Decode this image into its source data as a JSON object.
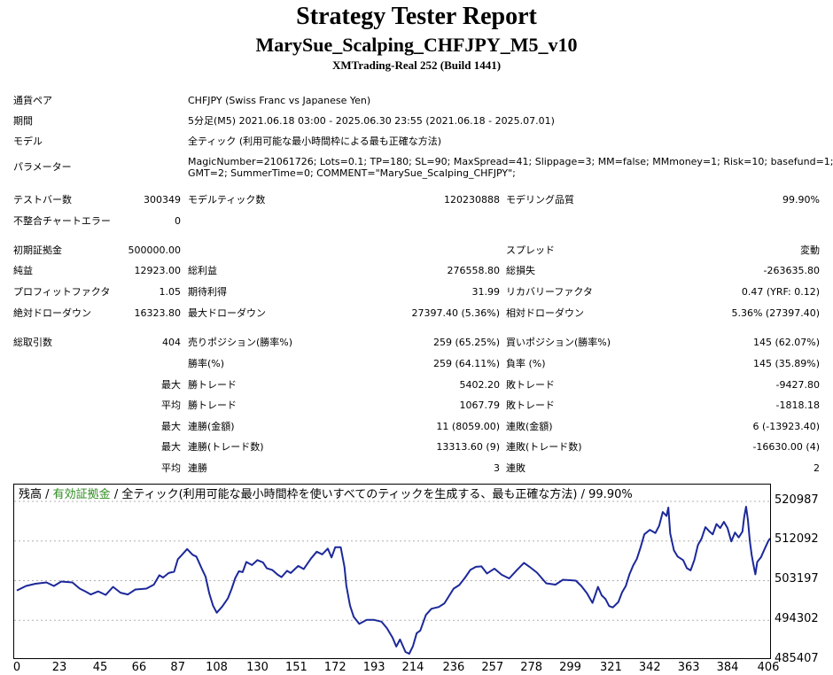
{
  "header": {
    "title": "Strategy Tester Report",
    "subtitle": "MarySue_Scalping_CHFJPY_M5_v10",
    "server": "XMTrading-Real 252 (Build 1441)"
  },
  "info": {
    "pair_label": "通貨ペア",
    "pair_value": "CHFJPY (Swiss Franc vs Japanese Yen)",
    "period_label": "期間",
    "period_value": "5分足(M5) 2021.06.18 03:00 - 2025.06.30 23:55 (2021.06.18 - 2025.07.01)",
    "model_label": "モデル",
    "model_value": "全ティック (利用可能な最小時間枠による最も正確な方法)",
    "params_label": "パラメーター",
    "params_line1": "MagicNumber=21061726; Lots=0.1; TP=180; SL=90; MaxSpread=41; Slippage=3; MM=false; MMmoney=1; Risk=10; basefund=1;",
    "params_line2": "GMT=2; SummerTime=0; COMMENT=\"MarySue_Scalping_CHFJPY\";"
  },
  "stats": {
    "bars_label": "テストバー数",
    "bars_value": "300349",
    "ticks_label": "モデルティック数",
    "ticks_value": "120230888",
    "quality_label": "モデリング品質",
    "quality_value": "99.90%",
    "mismatch_label": "不整合チャートエラー",
    "mismatch_value": "0",
    "deposit_label": "初期証拠金",
    "deposit_value": "500000.00",
    "spread_label": "スプレッド",
    "spread_value": "変動",
    "net_label": "純益",
    "net_value": "12923.00",
    "gross_profit_label": "総利益",
    "gross_profit_value": "276558.80",
    "gross_loss_label": "総損失",
    "gross_loss_value": "-263635.80",
    "pf_label": "プロフィットファクタ",
    "pf_value": "1.05",
    "expected_label": "期待利得",
    "expected_value": "31.99",
    "recovery_label": "リカバリーファクタ",
    "recovery_value": "0.47 (YRF: 0.12)",
    "abs_dd_label": "絶対ドローダウン",
    "abs_dd_value": "16323.80",
    "max_dd_label": "最大ドローダウン",
    "max_dd_value": "27397.40 (5.36%)",
    "rel_dd_label": "相対ドローダウン",
    "rel_dd_value": "5.36% (27397.40)"
  },
  "trades": {
    "total_label": "総取引数",
    "total_value": "404",
    "short_label": "売りポジション(勝率%)",
    "short_value": "259 (65.25%)",
    "long_label": "買いポジション(勝率%)",
    "long_value": "145 (62.07%)",
    "win_label": "勝率(%)",
    "win_value": "259 (64.11%)",
    "loss_label": "負率 (%)",
    "loss_value": "145 (35.89%)",
    "rows": [
      {
        "prefix": "最大",
        "l1": "勝トレード",
        "v1": "5402.20",
        "l2": "敗トレード",
        "v2": "-9427.80"
      },
      {
        "prefix": "平均",
        "l1": "勝トレード",
        "v1": "1067.79",
        "l2": "敗トレード",
        "v2": "-1818.18"
      },
      {
        "prefix": "最大",
        "l1": "連勝(金額)",
        "v1": "11 (8059.00)",
        "l2": "連敗(金額)",
        "v2": "6 (-13923.40)"
      },
      {
        "prefix": "最大",
        "l1": "連勝(トレード数)",
        "v1": "13313.60 (9)",
        "l2": "連敗(トレード数)",
        "v2": "-16630.00 (4)"
      },
      {
        "prefix": "平均",
        "l1": "連勝",
        "v1": "3",
        "l2": "連敗",
        "v2": "2"
      }
    ]
  },
  "legend": {
    "balance": "残高",
    "sep1": " / ",
    "equity": "有効証拠金",
    "sep2": " / ",
    "description": "全ティック(利用可能な最小時間枠を使いすべてのティックを生成する、最も正確な方法) / 99.90%"
  },
  "colors": {
    "balance": "#1c2899",
    "equity": "#2e8b22",
    "grid": "#b0b0b0"
  },
  "chart_data": {
    "type": "line",
    "ylim": [
      485407,
      520987
    ],
    "xlim": [
      0,
      406
    ],
    "y_ticks": [
      "520987",
      "512092",
      "503197",
      "494302",
      "485407"
    ],
    "x_ticks": [
      "0",
      "23",
      "45",
      "66",
      "87",
      "108",
      "130",
      "151",
      "172",
      "193",
      "214",
      "236",
      "257",
      "278",
      "299",
      "321",
      "342",
      "363",
      "384",
      "406"
    ],
    "series": [
      {
        "name": "残高",
        "points": [
          [
            0,
            501000
          ],
          [
            5,
            502000
          ],
          [
            10,
            502500
          ],
          [
            16,
            502800
          ],
          [
            20,
            502000
          ],
          [
            24,
            503000
          ],
          [
            30,
            502800
          ],
          [
            34,
            501400
          ],
          [
            37,
            500800
          ],
          [
            40,
            500100
          ],
          [
            44,
            500800
          ],
          [
            48,
            500000
          ],
          [
            52,
            501800
          ],
          [
            56,
            500500
          ],
          [
            60,
            500100
          ],
          [
            64,
            501200
          ],
          [
            70,
            501400
          ],
          [
            74,
            502300
          ],
          [
            77,
            504400
          ],
          [
            79,
            503900
          ],
          [
            82,
            504900
          ],
          [
            85,
            505200
          ],
          [
            87,
            508000
          ],
          [
            89,
            508900
          ],
          [
            92,
            510300
          ],
          [
            95,
            509000
          ],
          [
            97,
            508600
          ],
          [
            100,
            505800
          ],
          [
            102,
            504100
          ],
          [
            104,
            500300
          ],
          [
            106,
            497600
          ],
          [
            108,
            496000
          ],
          [
            111,
            497400
          ],
          [
            114,
            499200
          ],
          [
            116,
            501300
          ],
          [
            118,
            503800
          ],
          [
            120,
            505300
          ],
          [
            122,
            505100
          ],
          [
            124,
            507400
          ],
          [
            127,
            506700
          ],
          [
            130,
            507800
          ],
          [
            133,
            507300
          ],
          [
            135,
            506000
          ],
          [
            138,
            505600
          ],
          [
            141,
            504500
          ],
          [
            143,
            504000
          ],
          [
            146,
            505400
          ],
          [
            148,
            504900
          ],
          [
            152,
            506500
          ],
          [
            155,
            505800
          ],
          [
            159,
            508200
          ],
          [
            162,
            509700
          ],
          [
            165,
            509100
          ],
          [
            168,
            510400
          ],
          [
            170,
            508400
          ],
          [
            172,
            510700
          ],
          [
            175,
            510700
          ],
          [
            177,
            506300
          ],
          [
            178,
            502100
          ],
          [
            180,
            497600
          ],
          [
            182,
            495100
          ],
          [
            185,
            493500
          ],
          [
            189,
            494400
          ],
          [
            193,
            494400
          ],
          [
            197,
            494000
          ],
          [
            200,
            492500
          ],
          [
            203,
            490400
          ],
          [
            205,
            488400
          ],
          [
            207,
            490000
          ],
          [
            210,
            487200
          ],
          [
            212,
            486800
          ],
          [
            214,
            488500
          ],
          [
            216,
            491400
          ],
          [
            218,
            492000
          ],
          [
            221,
            495500
          ],
          [
            224,
            496900
          ],
          [
            228,
            497300
          ],
          [
            231,
            498100
          ],
          [
            236,
            501400
          ],
          [
            239,
            502200
          ],
          [
            242,
            503800
          ],
          [
            245,
            505600
          ],
          [
            248,
            506300
          ],
          [
            251,
            506400
          ],
          [
            254,
            504800
          ],
          [
            258,
            505900
          ],
          [
            262,
            504500
          ],
          [
            266,
            503700
          ],
          [
            270,
            505500
          ],
          [
            274,
            507200
          ],
          [
            277,
            506300
          ],
          [
            281,
            505000
          ],
          [
            286,
            502600
          ],
          [
            291,
            502300
          ],
          [
            295,
            503400
          ],
          [
            299,
            503300
          ],
          [
            302,
            503200
          ],
          [
            305,
            502000
          ],
          [
            308,
            500400
          ],
          [
            311,
            498200
          ],
          [
            314,
            501800
          ],
          [
            316,
            499900
          ],
          [
            318,
            499100
          ],
          [
            320,
            497500
          ],
          [
            322,
            497200
          ],
          [
            325,
            498400
          ],
          [
            327,
            500600
          ],
          [
            329,
            502000
          ],
          [
            331,
            504600
          ],
          [
            333,
            506600
          ],
          [
            335,
            508100
          ],
          [
            337,
            510700
          ],
          [
            339,
            513600
          ],
          [
            342,
            514600
          ],
          [
            345,
            513900
          ],
          [
            347,
            515500
          ],
          [
            349,
            518600
          ],
          [
            351,
            517700
          ],
          [
            352,
            519600
          ],
          [
            353,
            513800
          ],
          [
            355,
            510000
          ],
          [
            357,
            508600
          ],
          [
            360,
            507800
          ],
          [
            362,
            506000
          ],
          [
            364,
            505500
          ],
          [
            366,
            507800
          ],
          [
            368,
            511200
          ],
          [
            370,
            512700
          ],
          [
            372,
            515200
          ],
          [
            374,
            514300
          ],
          [
            376,
            513600
          ],
          [
            378,
            515900
          ],
          [
            380,
            515000
          ],
          [
            382,
            516400
          ],
          [
            384,
            515000
          ],
          [
            386,
            512000
          ],
          [
            388,
            514000
          ],
          [
            390,
            512900
          ],
          [
            392,
            514200
          ],
          [
            393,
            517500
          ],
          [
            394,
            519800
          ],
          [
            395,
            516800
          ],
          [
            396,
            512200
          ],
          [
            397,
            509000
          ],
          [
            398,
            506700
          ],
          [
            399,
            504600
          ],
          [
            400,
            507400
          ],
          [
            402,
            508400
          ],
          [
            404,
            510300
          ],
          [
            406,
            512100
          ],
          [
            407,
            512700
          ]
        ]
      }
    ]
  }
}
